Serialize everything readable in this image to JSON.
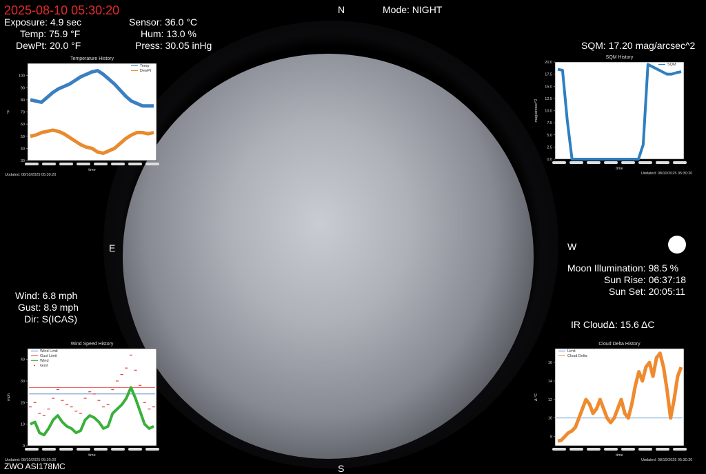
{
  "header": {
    "datetime": "2025-08-10  05:30:20",
    "mode": "Mode: NIGHT",
    "north": "N",
    "south": "S",
    "east": "E",
    "west": "W"
  },
  "stats_left": {
    "exposure": "Exposure: 4.9 sec",
    "temp": "Temp: 75.9 °F",
    "dewpt": "DewPt: 20.0 °F"
  },
  "stats_right": {
    "sensor": "Sensor: 36.0 °C",
    "hum": "Hum: 13.0 %",
    "press": "Press: 30.05 inHg"
  },
  "sqm": {
    "label": "SQM: 17.20 mag/arcsec^2"
  },
  "moon": {
    "illumination": "Moon Illumination: 98.5 %",
    "sunrise": "Sun Rise: 06:37:18",
    "sunset": "Sun Set: 20:05:11"
  },
  "wind": {
    "wind": "Wind: 6.8 mph",
    "gust": "Gust: 8.9 mph",
    "dir": "Dir: S(ICAS)"
  },
  "ircloud": {
    "label": "IR CloudΔ: 15.6 ΔC"
  },
  "camera": {
    "label": "ZWO ASI178MC"
  },
  "colors": {
    "temp": "#3a7fc1",
    "dewpt": "#e88a2d",
    "sqm": "#2f7fc0",
    "wind": "#3ab03a",
    "gust": "#e53935",
    "limit": "#4a7fc0",
    "cloud": "#ef8a2e",
    "accent": "#e52a2a"
  },
  "chart_data": [
    {
      "type": "line",
      "title": "Temperature History",
      "xlabel": "time",
      "ylabel": "°F",
      "ylim": [
        30,
        110
      ],
      "yticks": [
        30,
        40,
        50,
        60,
        70,
        80,
        90,
        100
      ],
      "series": [
        {
          "name": "Temp",
          "values": [
            80,
            79,
            78,
            82,
            86,
            89,
            91,
            93,
            96,
            99,
            101,
            103,
            104,
            101,
            97,
            93,
            88,
            83,
            79,
            77,
            75,
            75,
            75
          ]
        },
        {
          "name": "DewPt",
          "values": [
            50,
            51,
            53,
            54,
            55,
            54,
            52,
            49,
            46,
            43,
            41,
            40,
            37,
            36,
            38,
            40,
            44,
            48,
            51,
            53,
            53,
            52,
            53
          ]
        }
      ],
      "updated": "Updated: 08/10/2025 05:30:20"
    },
    {
      "type": "line",
      "title": "SQM History",
      "xlabel": "time",
      "ylabel": "mag/arcsec^2",
      "ylim": [
        0,
        20
      ],
      "yticks": [
        "0.0",
        "2.5",
        "5.0",
        "7.5",
        "10.0",
        "12.5",
        "15.0",
        "17.5",
        "20.0"
      ],
      "series": [
        {
          "name": "SQM",
          "values": [
            18.5,
            18.3,
            8,
            0,
            0,
            0,
            0,
            0,
            0,
            0,
            0,
            0,
            0,
            0,
            0,
            0,
            0,
            0,
            3,
            19.5,
            19,
            18.5,
            18,
            17.5,
            17.5,
            17.8,
            18
          ]
        }
      ],
      "updated": "Updated: 08/10/2025 05:30:20"
    },
    {
      "type": "scatter",
      "title": "Wind Speed History",
      "xlabel": "time",
      "ylabel": "mph",
      "ylim": [
        0,
        45
      ],
      "yticks": [
        0,
        10,
        20,
        30,
        40
      ],
      "wind_limit": 24,
      "gust_limit": 27,
      "series": [
        {
          "name": "Wind Limit",
          "values": [
            24,
            24
          ]
        },
        {
          "name": "Gust Limit",
          "values": [
            27,
            27
          ]
        },
        {
          "name": "Wind",
          "values": [
            10,
            11,
            6,
            5,
            8,
            12,
            14,
            11,
            9,
            8,
            6,
            7,
            12,
            14,
            13,
            11,
            8,
            9,
            15,
            17,
            19,
            22,
            27,
            22,
            16,
            10,
            8,
            9
          ]
        },
        {
          "name": "Gust",
          "values": [
            18,
            20,
            15,
            14,
            17,
            22,
            26,
            21,
            19,
            18,
            16,
            15,
            22,
            25,
            24,
            21,
            18,
            19,
            26,
            30,
            33,
            36,
            42,
            35,
            28,
            20,
            17,
            18
          ]
        }
      ],
      "updated": "Updated: 08/10/2025 05:30:20"
    },
    {
      "type": "line",
      "title": "Cloud Delta History",
      "xlabel": "time",
      "ylabel": "Δ °C",
      "ylim": [
        7,
        17.5
      ],
      "yticks": [
        8,
        10,
        12,
        14,
        16
      ],
      "limit": 10,
      "series": [
        {
          "name": "Limit",
          "values": [
            10,
            10
          ]
        },
        {
          "name": "Cloud Delta",
          "values": [
            7.5,
            7.6,
            8,
            8.4,
            8.6,
            9,
            10,
            11,
            12,
            11.5,
            10.5,
            11,
            12,
            11,
            10,
            9.5,
            10,
            11,
            12,
            10.5,
            10,
            11.5,
            13.5,
            15,
            14,
            15.5,
            16,
            14.5,
            16.5,
            17,
            15.5,
            13,
            10,
            12,
            14.5,
            15.5
          ]
        }
      ],
      "updated": "Updated: 08/10/2025 05:30:20"
    }
  ]
}
